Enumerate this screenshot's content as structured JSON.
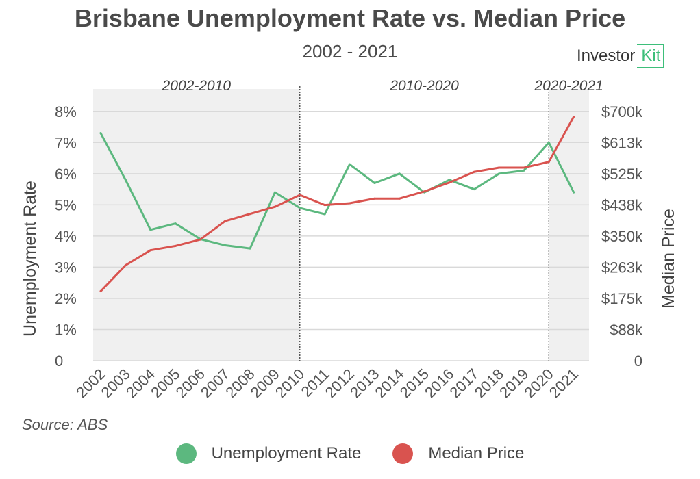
{
  "header": {
    "title": "Brisbane Unemployment Rate vs. Median Price",
    "subtitle": "2002 - 2021"
  },
  "logo": {
    "word": "Investor",
    "box_text": "Kit"
  },
  "source": "Source: ABS",
  "colors": {
    "unemployment": "#5cb87f",
    "median_price": "#d9534f",
    "shade": "#f0f0f0",
    "grid": "#d9d9d9",
    "logo_accent": "#3dbf7a"
  },
  "chart_data": {
    "type": "line",
    "x": [
      "2002",
      "2003",
      "2004",
      "2005",
      "2006",
      "2007",
      "2008",
      "2009",
      "2010",
      "2011",
      "2012",
      "2013",
      "2014",
      "2015",
      "2016",
      "2017",
      "2018",
      "2019",
      "2020",
      "2021"
    ],
    "ylabel": "Unemployment Rate",
    "y2label": "Median Price",
    "ylim": [
      0,
      8.5
    ],
    "y2lim": [
      0,
      743.75
    ],
    "left_ticks": [
      "0",
      "1%",
      "2%",
      "3%",
      "4%",
      "5%",
      "6%",
      "7%",
      "8%"
    ],
    "right_ticks": [
      "0",
      "$88k",
      "$175k",
      "$263k",
      "$350k",
      "$438k",
      "$525k",
      "$613k",
      "$700k"
    ],
    "periods": [
      {
        "label": "2002-2010",
        "start": "2002",
        "end": "2010",
        "shaded": true
      },
      {
        "label": "2010-2020",
        "start": "2010",
        "end": "2020",
        "shaded": false
      },
      {
        "label": "2020-2021",
        "start": "2020",
        "end": "2021",
        "shaded": true
      }
    ],
    "grid": true,
    "legend_position": "bottom",
    "series": [
      {
        "name": "Unemployment Rate",
        "axis": "left",
        "values": [
          7.3,
          5.8,
          4.2,
          4.4,
          3.9,
          3.7,
          3.6,
          5.4,
          4.9,
          4.7,
          6.3,
          5.7,
          6.0,
          5.4,
          5.8,
          5.5,
          6.0,
          6.1,
          7.0,
          5.4
        ]
      },
      {
        "name": "Median Price",
        "axis": "right",
        "values": [
          195,
          268,
          310,
          322,
          340,
          392,
          412,
          432,
          465,
          437,
          442,
          455,
          455,
          475,
          500,
          530,
          542,
          542,
          558,
          685
        ]
      }
    ]
  }
}
